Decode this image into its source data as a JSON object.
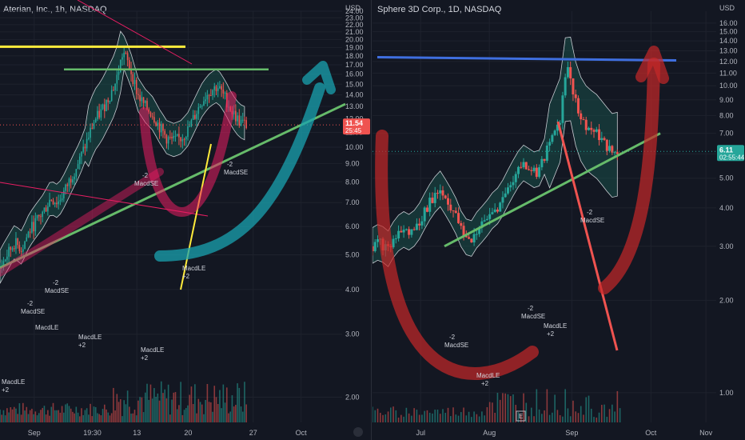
{
  "colors": {
    "background": "#131722",
    "up": "#26a69a",
    "down": "#ef5350",
    "grid": "#1e222d",
    "axis_text": "#b2b5be",
    "bb_fill": "#1a5a52",
    "bb_line": "#c8ccd2",
    "price_badge": "#ef5350",
    "price_badge_green": "#26a69a",
    "yellow": "#ffeb3b",
    "green_line": "#66bb6a",
    "blue_line": "#3f6fe0",
    "pink": "#e91e63",
    "teal_arrow": "#1aa3b0",
    "red_arrow": "#c62828"
  },
  "left": {
    "ticker": "Aterian, Inc., 1h, NASDAQ",
    "currency": "USD",
    "price_badge": "11.54",
    "price_badge_time": "25:45",
    "x_ticks": [
      "Sep",
      "19:30",
      "13",
      "20",
      "27",
      "Oct"
    ],
    "annotations": [
      "-2",
      "MacdSE",
      "-2",
      "MacdSE",
      "MacdLE",
      "MacdLE",
      "+2",
      "MacdLE",
      "+2",
      "-2",
      "MacdSE",
      "-2",
      "MacdSE",
      "MacdLE",
      "+2",
      "MacdLE",
      "+2"
    ]
  },
  "right": {
    "ticker": "Sphere 3D Corp., 1D, NASDAQ",
    "currency": "USD",
    "price_badge": "6.11",
    "price_badge_time": "02:55:44",
    "x_ticks": [
      "Jul",
      "Aug",
      "Sep",
      "Oct",
      "Nov"
    ],
    "annotations": [
      "-2",
      "MacdSE",
      "-2",
      "MacdSE",
      "MacdLE",
      "+2",
      "MacdLE",
      "+2",
      "-2",
      "MacdSE"
    ],
    "event_badge": "E"
  },
  "chart_data": [
    {
      "type": "candlestick",
      "title": "Aterian, Inc., 1h, NASDAQ",
      "y_ticks": [
        2.0,
        3.0,
        4.0,
        5.0,
        6.0,
        7.0,
        8.0,
        9.0,
        10.0,
        11.0,
        12.0,
        13.0,
        14.0,
        15.0,
        16.0,
        17.0,
        18.0,
        19.0,
        20.0,
        21.0,
        22.0,
        23.0,
        24.0
      ],
      "y_scale": "log",
      "ylim": [
        1.7,
        24.0
      ],
      "last_price": 11.54,
      "price_path": [
        4.6,
        5.0,
        5.4,
        5.2,
        5.8,
        6.2,
        6.6,
        7.2,
        7.0,
        7.6,
        8.4,
        9.2,
        10.4,
        11.8,
        12.6,
        13.8,
        15.2,
        18.5,
        16.5,
        14.0,
        13.0,
        12.4,
        11.4,
        10.6,
        10.4,
        10.6,
        11.2,
        12.4,
        13.6,
        14.4,
        14.8,
        13.8,
        12.6,
        11.8,
        11.54
      ],
      "drawings": {
        "yellow_resistance": 19.1,
        "green_resistance": 16.5,
        "uptrend_from": 4.6,
        "uptrend_to": 13.2
      }
    },
    {
      "type": "candlestick",
      "title": "Sphere 3D Corp., 1D, NASDAQ",
      "y_ticks": [
        1.0,
        2.0,
        3.0,
        4.0,
        5.0,
        6.0,
        7.0,
        8.0,
        9.0,
        10.0,
        11.0,
        12.0,
        13.0,
        14.0,
        15.0,
        16.0
      ],
      "y_scale": "log",
      "ylim": [
        0.8,
        17.5
      ],
      "last_price": 6.11,
      "price_path": [
        3.0,
        3.1,
        2.9,
        3.2,
        3.4,
        3.3,
        3.5,
        3.9,
        4.3,
        4.6,
        4.2,
        3.8,
        3.3,
        3.1,
        3.4,
        3.6,
        3.9,
        4.1,
        4.6,
        5.1,
        5.6,
        5.4,
        5.2,
        5.9,
        6.8,
        7.8,
        11.8,
        9.0,
        7.6,
        7.2,
        6.9,
        6.4,
        6.0,
        6.11
      ],
      "drawings": {
        "blue_resistance": 12.1,
        "uptrend_from": 3.0,
        "uptrend_to": 7.0
      }
    }
  ]
}
